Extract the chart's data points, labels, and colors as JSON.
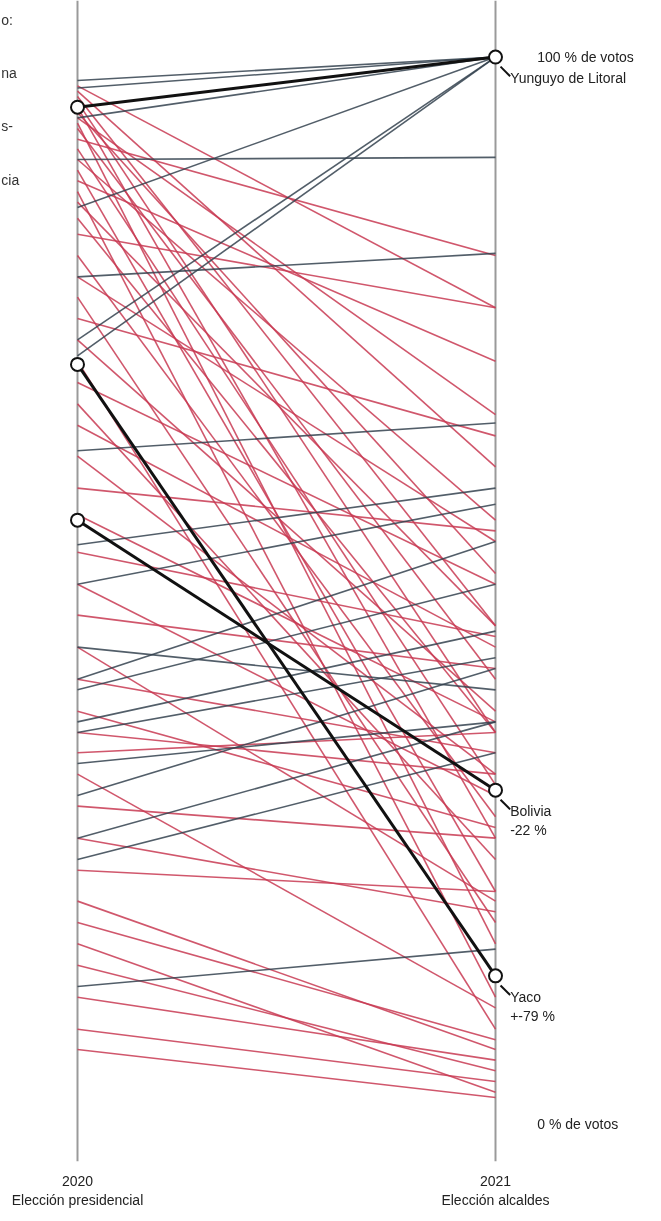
{
  "chart_data": {
    "type": "line",
    "categories": [
      "2020\nElección presidencial",
      "2021\nElección alcaldes"
    ],
    "ylim": [
      -3.5,
      105.3
    ],
    "yticks": [
      {
        "value": 100,
        "label": "100 % de votos"
      },
      {
        "value": 0,
        "label": "0 % de votos"
      }
    ],
    "grid": "x",
    "annotations": [
      "o:",
      "na",
      "s-",
      "cia",
      {
        "text": "Yunguyo de Litoral",
        "x": "2021\nElección alcaldes",
        "y": 100
      },
      {
        "text": "Bolivia\n-22 %",
        "x": "2021\nElección alcaldes",
        "y": 31.3
      },
      {
        "text": "Yaco\n+-79 %",
        "x": "2021\nElección alcaldes",
        "y": 13.9
      }
    ],
    "series": [
      {
        "color": "#c83a52",
        "values": [
          97.3,
          76.5
        ]
      },
      {
        "color": "#c83a52",
        "values": [
          96.8,
          61.6
        ]
      },
      {
        "color": "#c83a52",
        "values": [
          96.3,
          46.7
        ]
      },
      {
        "color": "#c83a52",
        "values": [
          95.8,
          36.7
        ]
      },
      {
        "color": "#c83a52",
        "values": [
          95.3,
          26.8
        ]
      },
      {
        "color": "#c83a52",
        "values": [
          94.8,
          51.6
        ]
      },
      {
        "color": "#c83a52",
        "values": [
          94.3,
          66.5
        ]
      },
      {
        "color": "#c83a52",
        "values": [
          93.8,
          16.9
        ]
      },
      {
        "color": "#c83a52",
        "values": [
          93.3,
          41.7
        ]
      },
      {
        "color": "#c83a52",
        "values": [
          92.3,
          81.4
        ]
      },
      {
        "color": "#c83a52",
        "values": [
          91.4,
          31.8
        ]
      },
      {
        "color": "#c83a52",
        "values": [
          90.4,
          56.6
        ]
      },
      {
        "color": "#c83a52",
        "values": [
          89.4,
          21.8
        ]
      },
      {
        "color": "#c83a52",
        "values": [
          88.4,
          71.5
        ]
      },
      {
        "color": "#c83a52",
        "values": [
          87.4,
          11.9
        ]
      },
      {
        "color": "#c83a52",
        "values": [
          86.4,
          46.7
        ]
      },
      {
        "color": "#c83a52",
        "values": [
          84.9,
          36.7
        ]
      },
      {
        "color": "#c83a52",
        "values": [
          83.4,
          76.5
        ]
      },
      {
        "color": "#c83a52",
        "values": [
          81.4,
          28.8
        ]
      },
      {
        "color": "#c83a52",
        "values": [
          79.4,
          54.6
        ]
      },
      {
        "color": "#c83a52",
        "values": [
          77.5,
          18.9
        ]
      },
      {
        "color": "#c83a52",
        "values": [
          75.5,
          64.5
        ]
      },
      {
        "color": "#c83a52",
        "values": [
          73.5,
          38.7
        ]
      },
      {
        "color": "#c83a52",
        "values": [
          71.5,
          8.9
        ]
      },
      {
        "color": "#c83a52",
        "values": [
          69.5,
          50.6
        ]
      },
      {
        "color": "#c83a52",
        "values": [
          67.5,
          24.8
        ]
      },
      {
        "color": "#c83a52",
        "values": [
          65.5,
          44.7
        ]
      },
      {
        "color": "#c83a52",
        "values": [
          62.6,
          32.8
        ]
      },
      {
        "color": "#c83a52",
        "values": [
          59.6,
          55.6
        ]
      },
      {
        "color": "#c83a52",
        "values": [
          57.1,
          37.7
        ]
      },
      {
        "color": "#c83a52",
        "values": [
          53.6,
          45.7
        ]
      },
      {
        "color": "#c83a52",
        "values": [
          50.6,
          30.8
        ]
      },
      {
        "color": "#c83a52",
        "values": [
          47.7,
          42.7
        ]
      },
      {
        "color": "#c83a52",
        "values": [
          44.7,
          20.9
        ]
      },
      {
        "color": "#c83a52",
        "values": [
          41.7,
          34.8
        ]
      },
      {
        "color": "#c83a52",
        "values": [
          38.7,
          27.8
        ]
      },
      {
        "color": "#c83a52",
        "values": [
          36.7,
          32.8
        ]
      },
      {
        "color": "#c83a52",
        "values": [
          34.8,
          36.7
        ]
      },
      {
        "color": "#c83a52",
        "values": [
          32.8,
          10.9
        ]
      },
      {
        "color": "#c83a52",
        "values": [
          29.8,
          26.8
        ]
      },
      {
        "color": "#c83a52",
        "values": [
          26.8,
          19.9
        ]
      },
      {
        "color": "#c83a52",
        "values": [
          23.8,
          21.8
        ]
      },
      {
        "color": "#c83a52",
        "values": [
          20.9,
          7.0
        ]
      },
      {
        "color": "#c83a52",
        "values": [
          18.9,
          7.9
        ]
      },
      {
        "color": "#c83a52",
        "values": [
          16.9,
          3.0
        ]
      },
      {
        "color": "#c83a52",
        "values": [
          14.9,
          5.0
        ]
      },
      {
        "color": "#c83a52",
        "values": [
          11.9,
          6.0
        ]
      },
      {
        "color": "#c83a52",
        "values": [
          8.9,
          4.0
        ]
      },
      {
        "color": "#c83a52",
        "values": [
          7.0,
          2.5
        ]
      },
      {
        "color": "#34424f",
        "values": [
          97.8,
          100
        ]
      },
      {
        "color": "#34424f",
        "values": [
          97.1,
          100
        ]
      },
      {
        "color": "#34424f",
        "values": [
          94.3,
          100
        ]
      },
      {
        "color": "#34424f",
        "values": [
          90.4,
          90.6
        ]
      },
      {
        "color": "#34424f",
        "values": [
          85.9,
          100
        ]
      },
      {
        "color": "#34424f",
        "values": [
          79.4,
          81.6
        ]
      },
      {
        "color": "#34424f",
        "values": [
          73.5,
          100
        ]
      },
      {
        "color": "#34424f",
        "values": [
          72.0,
          100
        ]
      },
      {
        "color": "#34424f",
        "values": [
          63.1,
          65.7
        ]
      },
      {
        "color": "#34424f",
        "values": [
          54.3,
          59.6
        ]
      },
      {
        "color": "#34424f",
        "values": [
          50.6,
          58.1
        ]
      },
      {
        "color": "#34424f",
        "values": [
          41.7,
          54.6
        ]
      },
      {
        "color": "#34424f",
        "values": [
          40.7,
          50.6
        ]
      },
      {
        "color": "#34424f",
        "values": [
          37.7,
          46.2
        ]
      },
      {
        "color": "#34424f",
        "values": [
          36.7,
          43.7
        ]
      },
      {
        "color": "#34424f",
        "values": [
          33.8,
          37.7
        ]
      },
      {
        "color": "#34424f",
        "values": [
          30.8,
          42.7
        ]
      },
      {
        "color": "#34424f",
        "values": [
          26.8,
          37.7
        ]
      },
      {
        "color": "#34424f",
        "values": [
          24.8,
          34.8
        ]
      },
      {
        "color": "#34424f",
        "values": [
          44.7,
          40.7
        ]
      },
      {
        "color": "#34424f",
        "values": [
          12.9,
          16.4
        ]
      },
      {
        "color": "#111111",
        "marker": "circle",
        "values": [
          95.3,
          100
        ]
      },
      {
        "color": "#111111",
        "marker": "circle",
        "values": [
          56.6,
          31.3
        ]
      },
      {
        "color": "#111111",
        "marker": "circle",
        "values": [
          71.2,
          13.9
        ]
      }
    ]
  }
}
